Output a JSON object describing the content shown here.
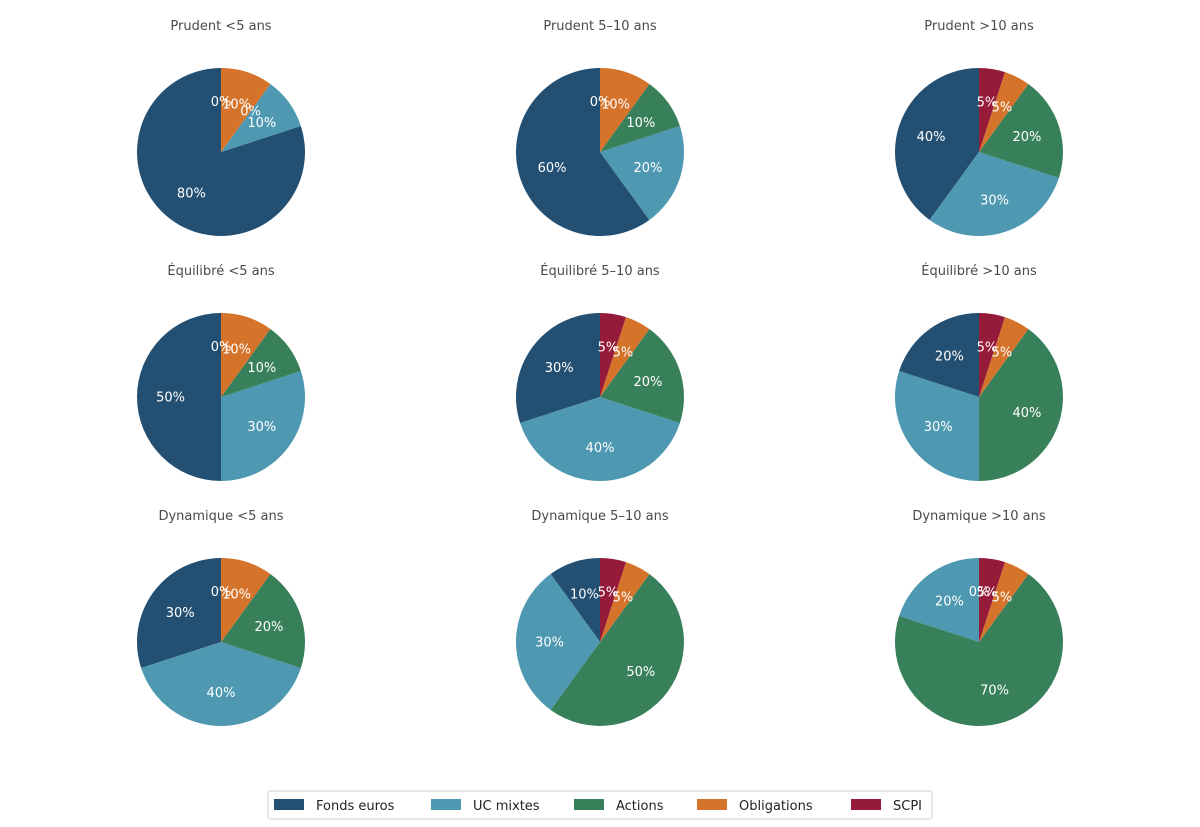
{
  "chart_data": {
    "type": "pie",
    "categories": [
      "Fonds euros",
      "UC mixtes",
      "Actions",
      "Obligations",
      "SCPI"
    ],
    "colors": [
      "#234f72",
      "#4e98b1",
      "#38805a",
      "#d5732b",
      "#961b3b"
    ],
    "charts": [
      {
        "title": "Prudent <5 ans",
        "values": [
          80,
          10,
          0,
          10,
          0
        ],
        "labels": [
          "80%",
          "10%",
          "0%",
          "10%",
          "0%"
        ]
      },
      {
        "title": "Prudent 5–10 ans",
        "values": [
          60,
          20,
          10,
          10,
          0
        ],
        "labels": [
          "60%",
          "20%",
          "10%",
          "10%",
          "0%"
        ]
      },
      {
        "title": "Prudent >10 ans",
        "values": [
          40,
          30,
          20,
          5,
          5
        ],
        "labels": [
          "40%",
          "30%",
          "20%",
          "5%",
          "5%"
        ]
      },
      {
        "title": "Équilibré <5 ans",
        "values": [
          50,
          30,
          10,
          10,
          0
        ],
        "labels": [
          "50%",
          "30%",
          "10%",
          "10%",
          "0%"
        ]
      },
      {
        "title": "Équilibré 5–10 ans",
        "values": [
          30,
          40,
          20,
          5,
          5
        ],
        "labels": [
          "30%",
          "40%",
          "20%",
          "5%",
          "5%"
        ]
      },
      {
        "title": "Équilibré >10 ans",
        "values": [
          20,
          30,
          40,
          5,
          5
        ],
        "labels": [
          "20%",
          "30%",
          "40%",
          "5%",
          "5%"
        ]
      },
      {
        "title": "Dynamique <5 ans",
        "values": [
          30,
          40,
          20,
          10,
          0
        ],
        "labels": [
          "30%",
          "40%",
          "20%",
          "10%",
          "0%"
        ]
      },
      {
        "title": "Dynamique 5–10 ans",
        "values": [
          10,
          30,
          50,
          5,
          5
        ],
        "labels": [
          "10%",
          "30%",
          "50%",
          "5%",
          "5%"
        ]
      },
      {
        "title": "Dynamique >10 ans",
        "values": [
          0,
          20,
          70,
          5,
          5
        ],
        "labels": [
          "0%",
          "20%",
          "70%",
          "5%",
          "5%"
        ]
      }
    ],
    "legend": {
      "entries": [
        "Fonds euros",
        "UC mixtes",
        "Actions",
        "Obligations",
        "SCPI"
      ],
      "placement": "bottom-center"
    }
  }
}
